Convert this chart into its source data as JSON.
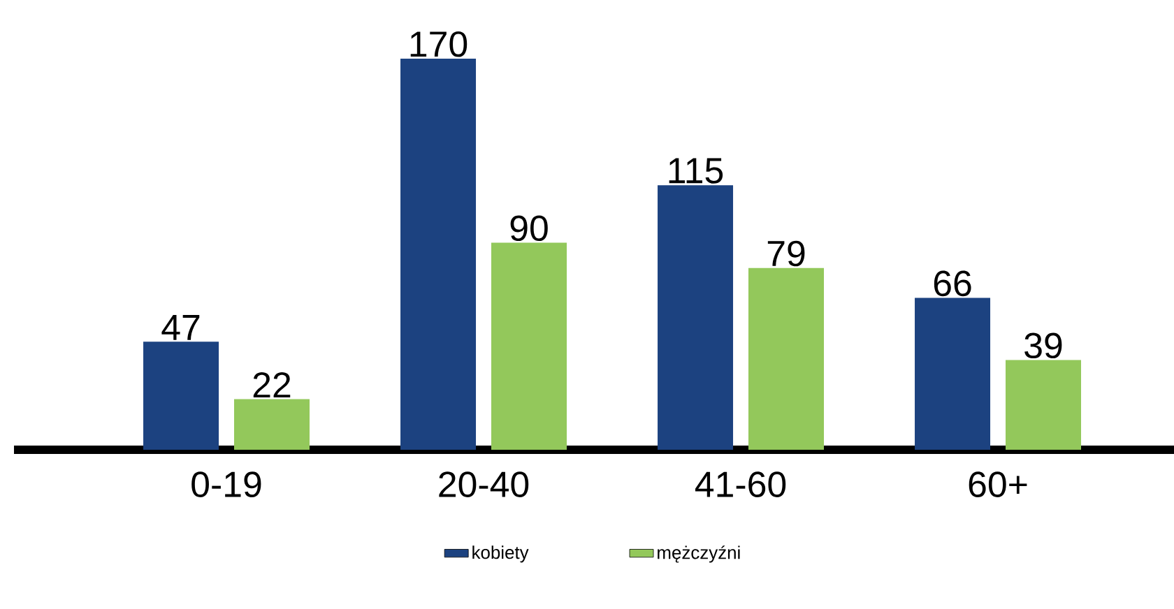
{
  "chart_data": {
    "type": "bar",
    "categories": [
      "0-19",
      "20-40",
      "41-60",
      "60+"
    ],
    "series": [
      {
        "name": "kobiety",
        "color": "#1c4280",
        "values": [
          47,
          170,
          115,
          66
        ]
      },
      {
        "name": "mężczyźni",
        "color": "#93c85b",
        "values": [
          22,
          90,
          79,
          39
        ]
      }
    ],
    "data_labels": true,
    "legend": "bottom"
  }
}
